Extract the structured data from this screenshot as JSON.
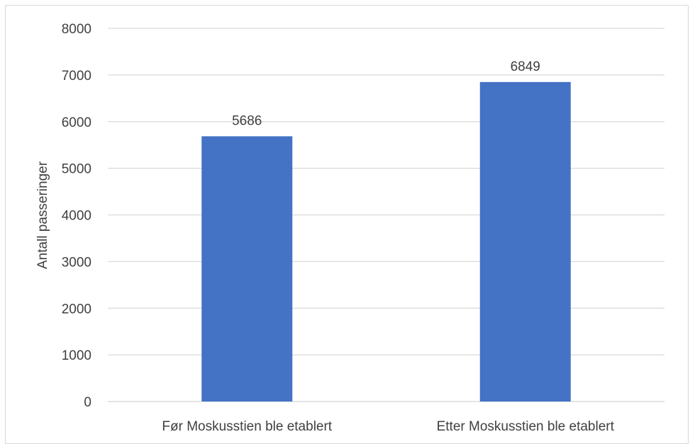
{
  "chart_data": {
    "type": "bar",
    "categories": [
      "Før Moskusstien ble etablert",
      "Etter Moskusstien ble etablert"
    ],
    "values": [
      5686,
      6849
    ],
    "data_labels": [
      "5686",
      "6849"
    ],
    "title": "",
    "xlabel": "",
    "ylabel": "Antall passeringer",
    "ylim": [
      0,
      8000
    ],
    "yticks": [
      0,
      1000,
      2000,
      3000,
      4000,
      5000,
      6000,
      7000,
      8000
    ],
    "ytick_labels": [
      "0",
      "1000",
      "2000",
      "3000",
      "4000",
      "5000",
      "6000",
      "7000",
      "8000"
    ],
    "grid": true,
    "legend": "none",
    "colors": {
      "bar": "#4472c4",
      "grid": "#d9d9d9",
      "text": "#404040"
    }
  }
}
